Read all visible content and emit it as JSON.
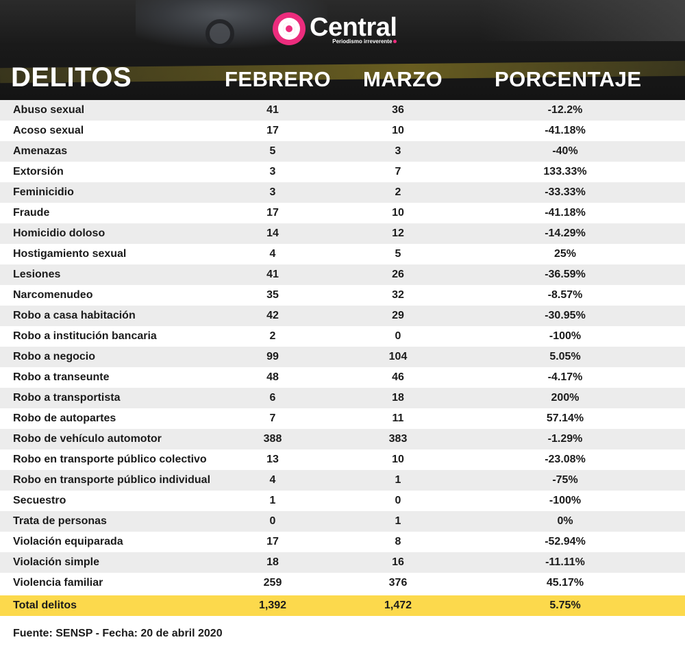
{
  "brand": {
    "name": "Central",
    "tagline": "Periodismo irreverente"
  },
  "columns": {
    "delitos": "DELITOS",
    "febrero": "FEBRERO",
    "marzo": "MARZO",
    "porcentaje": "PORCENTAJE"
  },
  "rows": [
    {
      "delito": "Abuso sexual",
      "febrero": "41",
      "marzo": "36",
      "porcentaje": "-12.2%"
    },
    {
      "delito": "Acoso sexual",
      "febrero": "17",
      "marzo": "10",
      "porcentaje": "-41.18%"
    },
    {
      "delito": "Amenazas",
      "febrero": "5",
      "marzo": "3",
      "porcentaje": "-40%"
    },
    {
      "delito": "Extorsión",
      "febrero": "3",
      "marzo": "7",
      "porcentaje": "133.33%"
    },
    {
      "delito": "Feminicidio",
      "febrero": "3",
      "marzo": "2",
      "porcentaje": "-33.33%"
    },
    {
      "delito": "Fraude",
      "febrero": "17",
      "marzo": "10",
      "porcentaje": "-41.18%"
    },
    {
      "delito": "Homicidio doloso",
      "febrero": "14",
      "marzo": "12",
      "porcentaje": "-14.29%"
    },
    {
      "delito": "Hostigamiento sexual",
      "febrero": "4",
      "marzo": "5",
      "porcentaje": "25%"
    },
    {
      "delito": "Lesiones",
      "febrero": "41",
      "marzo": "26",
      "porcentaje": "-36.59%"
    },
    {
      "delito": "Narcomenudeo",
      "febrero": "35",
      "marzo": "32",
      "porcentaje": "-8.57%"
    },
    {
      "delito": "Robo a casa habitación",
      "febrero": "42",
      "marzo": "29",
      "porcentaje": "-30.95%"
    },
    {
      "delito": "Robo a institución bancaria",
      "febrero": "2",
      "marzo": "0",
      "porcentaje": "-100%"
    },
    {
      "delito": "Robo a negocio",
      "febrero": "99",
      "marzo": "104",
      "porcentaje": "5.05%"
    },
    {
      "delito": "Robo a transeunte",
      "febrero": "48",
      "marzo": "46",
      "porcentaje": "-4.17%"
    },
    {
      "delito": "Robo a transportista",
      "febrero": "6",
      "marzo": "18",
      "porcentaje": "200%"
    },
    {
      "delito": "Robo de autopartes",
      "febrero": "7",
      "marzo": "11",
      "porcentaje": "57.14%"
    },
    {
      "delito": "Robo de vehículo automotor",
      "febrero": "388",
      "marzo": "383",
      "porcentaje": "-1.29%"
    },
    {
      "delito": "Robo en transporte público colectivo",
      "febrero": "13",
      "marzo": "10",
      "porcentaje": "-23.08%"
    },
    {
      "delito": "Robo en transporte público individual",
      "febrero": "4",
      "marzo": "1",
      "porcentaje": "-75%"
    },
    {
      "delito": "Secuestro",
      "febrero": "1",
      "marzo": "0",
      "porcentaje": "-100%"
    },
    {
      "delito": "Trata de personas",
      "febrero": "0",
      "marzo": "1",
      "porcentaje": "0%"
    },
    {
      "delito": "Violación equiparada",
      "febrero": "17",
      "marzo": "8",
      "porcentaje": "-52.94%"
    },
    {
      "delito": "Violación simple",
      "febrero": "18",
      "marzo": "16",
      "porcentaje": "-11.11%"
    },
    {
      "delito": "Violencia familiar",
      "febrero": "259",
      "marzo": "376",
      "porcentaje": "45.17%"
    }
  ],
  "total": {
    "delito": "Total delitos",
    "febrero": "1,392",
    "marzo": "1,472",
    "porcentaje": "5.75%"
  },
  "source": "Fuente: SENSP  - Fecha: 20 de abril 2020",
  "colors": {
    "accent": "#ec2c7d",
    "highlight": "#fcd94c",
    "header_bg": "#1a1a1a",
    "row_alt": "#ececec"
  }
}
